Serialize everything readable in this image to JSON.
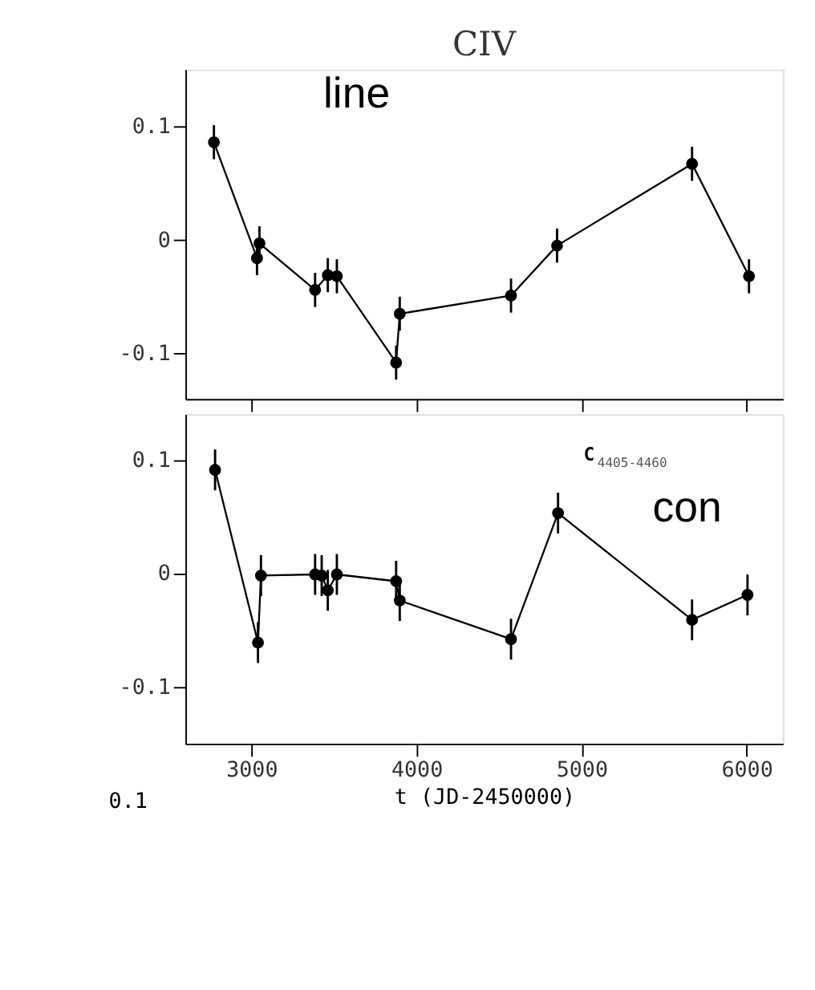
{
  "chart_data": [
    {
      "type": "line",
      "title": "CIV",
      "x": [
        2773,
        3034,
        3049,
        3386,
        3463,
        3518,
        3877,
        3899,
        4573,
        4852,
        5670,
        6015
      ],
      "series": [
        {
          "color": "#000000",
          "values": [
            0.086,
            -0.016,
            -0.003,
            -0.044,
            -0.031,
            -0.032,
            -0.108,
            -0.065,
            -0.049,
            -0.005,
            0.067,
            -0.032
          ],
          "errors": [
            0.015,
            0.015,
            0.015,
            0.015,
            0.015,
            0.015,
            0.015,
            0.015,
            0.015,
            0.015,
            0.015,
            0.015
          ]
        }
      ],
      "xlim": [
        2600,
        6220
      ],
      "xticks": [
        3000,
        4000,
        5000,
        6000
      ],
      "ylim": [
        -0.14,
        0.15
      ],
      "yticks": [
        {
          "value": -0.1,
          "label": "-0.1"
        },
        {
          "value": 0,
          "label": "0"
        },
        {
          "value": 0.1,
          "label": "0.1"
        }
      ],
      "tick_labels": "y",
      "marker": "circle",
      "line_style": "solid",
      "grid": false,
      "annotations": [
        "line"
      ]
    },
    {
      "type": "line",
      "xlabel": "t (JD-2450000)",
      "x": [
        2780,
        3040,
        3058,
        3386,
        3426,
        3463,
        3518,
        3877,
        3899,
        4573,
        4858,
        5670,
        6006
      ],
      "series": [
        {
          "color": "#000000",
          "values": [
            0.091,
            -0.061,
            -0.002,
            -0.001,
            -0.002,
            -0.015,
            -0.001,
            -0.007,
            -0.024,
            -0.058,
            0.053,
            -0.041,
            -0.019
          ],
          "errors": [
            0.018,
            0.018,
            0.018,
            0.018,
            0.018,
            0.018,
            0.018,
            0.018,
            0.018,
            0.018,
            0.018,
            0.018,
            0.018
          ]
        }
      ],
      "xlim": [
        2600,
        6220
      ],
      "xticks": [
        3000,
        4000,
        5000,
        6000
      ],
      "ylim": [
        -0.15,
        0.14
      ],
      "yticks": [
        {
          "value": -0.1,
          "label": "-0.1"
        },
        {
          "value": 0,
          "label": "0"
        },
        {
          "value": 0.1,
          "label": "0.1"
        }
      ],
      "marker": "circle",
      "line_style": "solid",
      "grid": false,
      "annotations": [
        "C$_{4405-4460}$",
        "con",
        "0.1"
      ]
    }
  ]
}
